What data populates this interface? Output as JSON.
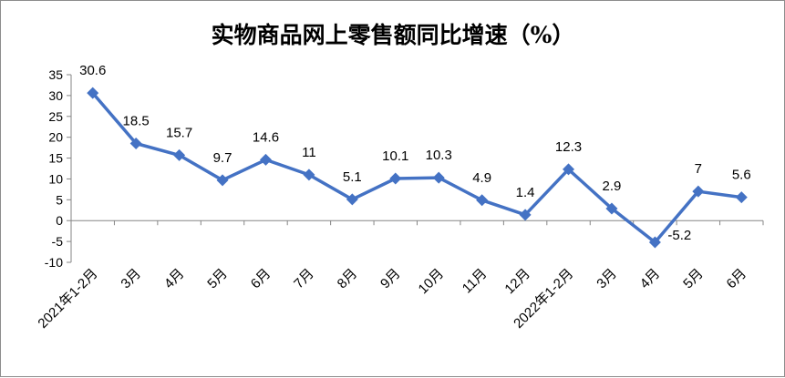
{
  "chart_data": {
    "type": "line",
    "title": "实物商品网上零售额同比增速（%）",
    "categories": [
      "2021年1-2月",
      "3月",
      "4月",
      "5月",
      "6月",
      "7月",
      "8月",
      "9月",
      "10月",
      "11月",
      "12月",
      "2022年1-2月",
      "3月",
      "4月",
      "5月",
      "6月"
    ],
    "series": [
      {
        "values": [
          30.6,
          18.5,
          15.7,
          9.7,
          14.6,
          11,
          5.1,
          10.1,
          10.3,
          4.9,
          1.4,
          12.3,
          2.9,
          -5.2,
          7,
          5.6
        ]
      }
    ],
    "ylim": [
      -10,
      35
    ],
    "yticks": [
      -10,
      -5,
      0,
      5,
      10,
      15,
      20,
      25,
      30,
      35
    ],
    "data_labels": [
      "30.6",
      "18.5",
      "15.7",
      "9.7",
      "14.6",
      "11",
      "5.1",
      "10.1",
      "10.3",
      "4.9",
      "1.4",
      "12.3",
      "2.9",
      "-5.2",
      "7",
      "5.6"
    ],
    "grid": false,
    "legend": "none",
    "colors": {
      "line": "#4472c4",
      "marker": "#4472c4",
      "axis": "#868686"
    }
  }
}
